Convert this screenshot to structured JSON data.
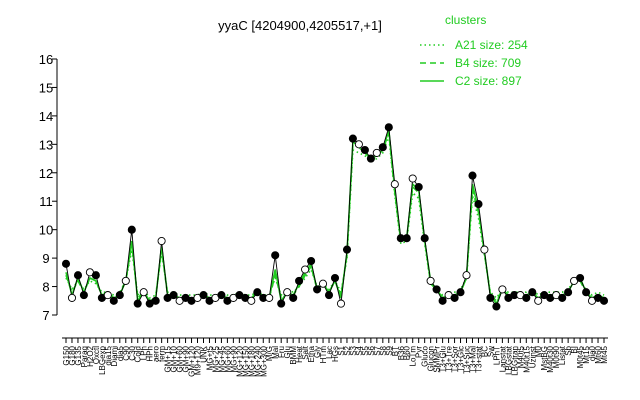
{
  "chart_data": {
    "type": "line",
    "title": "yyaC [4204900,4205517,+1]",
    "xlabel": "",
    "ylabel": "",
    "ylim": [
      7,
      16
    ],
    "yticks": [
      7,
      8,
      9,
      10,
      11,
      12,
      13,
      14,
      15,
      16
    ],
    "grid": false,
    "legend": {
      "title": "clusters",
      "placement": "top-right",
      "entries": [
        {
          "label": "A21 size: 254",
          "style": "dotted"
        },
        {
          "label": "B4 size: 709",
          "style": "dashed"
        },
        {
          "label": "C2 size: 897",
          "style": "solid"
        }
      ]
    },
    "colors": {
      "clusters": "#22cc22",
      "line": "#000000",
      "point_edge": "#000000"
    },
    "x_tick_labels": [
      "G150",
      "G180",
      "G135",
      "Paraq",
      "H2O2",
      "Oxctl",
      "LBGexp",
      "dia15",
      "Diami",
      "dia5",
      "C90",
      "C30",
      "Cold",
      "LPh",
      "HPh",
      "aero",
      "ferm",
      "GM+15",
      "GM+10",
      "GM+60",
      "GM+90",
      "GM+120",
      "M9+120",
      "UNK",
      "MG+t5",
      "MG+25",
      "MG+45",
      "MG+60",
      "MG+90",
      "MG+120",
      "MG+150",
      "MG+180",
      "MG+240",
      "MG+300",
      "M/G",
      "Mal",
      "Fru",
      "Glu",
      "BMM",
      "Heat",
      "Salt",
      "Etha",
      "Gly",
      "HTm",
      "Lac",
      "HGs",
      "S1",
      "S2",
      "S3",
      "S4",
      "S5",
      "S6",
      "S7",
      "S8",
      "S9",
      "BT",
      "B36",
      "B60",
      "LoTm",
      "Pyr",
      "Gluco",
      "Glucon",
      "SMMPr",
      "T3+Glu",
      "T3+Tre",
      "T3+Sor",
      "T3+Glc",
      "T3+Suc",
      "T3+Mal",
      "T3+stat",
      "BC",
      "Sw",
      "LPhT",
      "Lanstat",
      "LBGstat",
      "LBGtran",
      "M40t5",
      "M40t15",
      "Uzinst",
      "M0",
      "MstBG",
      "M40t30",
      "M0t90",
      "Listat",
      "Sb",
      "BI",
      "M0t45",
      "Mt15",
      "dia0",
      "Mt60",
      "Mt45"
    ],
    "x": [
      1,
      2,
      3,
      4,
      5,
      6,
      7,
      8,
      9,
      10,
      11,
      12,
      13,
      14,
      15,
      16,
      17,
      18,
      19,
      20,
      21,
      22,
      23,
      24,
      25,
      26,
      27,
      28,
      29,
      30,
      31,
      32,
      33,
      34,
      35,
      36,
      37,
      38,
      39,
      40,
      41,
      42,
      43,
      44,
      45,
      46,
      47,
      48,
      49,
      50,
      51,
      52,
      53,
      54,
      55,
      56,
      57,
      58,
      59,
      60,
      61,
      62,
      63,
      64,
      65,
      66,
      67,
      68,
      69,
      70,
      71,
      72,
      73,
      74,
      75,
      76,
      77,
      78,
      79,
      80,
      81,
      82,
      83,
      84,
      85,
      86,
      87,
      88,
      89,
      90,
      91
    ],
    "series": [
      {
        "kind": "data",
        "values": [
          8.8,
          7.6,
          8.4,
          7.7,
          8.5,
          8.4,
          7.6,
          7.7,
          7.5,
          7.7,
          8.2,
          10.0,
          7.4,
          7.8,
          7.4,
          7.5,
          9.6,
          7.6,
          7.7,
          7.5,
          7.6,
          7.5,
          7.6,
          7.7,
          7.5,
          7.6,
          7.7,
          7.5,
          7.6,
          7.7,
          7.6,
          7.5,
          7.8,
          7.6,
          7.6,
          9.1,
          7.4,
          7.8,
          7.6,
          8.2,
          8.6,
          8.9,
          7.9,
          8.1,
          7.7,
          8.3,
          7.4,
          9.3,
          13.2,
          13.0,
          12.8,
          12.5,
          12.7,
          12.9,
          13.6,
          11.6,
          9.7,
          9.7,
          11.8,
          11.5,
          9.7,
          8.2,
          7.9,
          7.5,
          7.7,
          7.6,
          7.8,
          8.4,
          11.9,
          10.9,
          9.3,
          7.6,
          7.3,
          7.9,
          7.6,
          7.7,
          7.7,
          7.6,
          7.8,
          7.5,
          7.7,
          7.6,
          7.7,
          7.6,
          7.8,
          8.2,
          8.3,
          7.8,
          7.5,
          7.6,
          7.5
        ]
      },
      {
        "name": "A21",
        "values": [
          8.3,
          7.9,
          8.2,
          7.9,
          8.2,
          8.1,
          7.8,
          7.8,
          7.7,
          7.8,
          8.2,
          9.3,
          7.7,
          7.9,
          7.6,
          7.7,
          9.2,
          7.8,
          7.8,
          7.7,
          7.7,
          7.7,
          7.7,
          7.8,
          7.7,
          7.7,
          7.8,
          7.7,
          7.7,
          7.8,
          7.7,
          7.7,
          7.8,
          7.7,
          7.7,
          8.3,
          7.7,
          7.9,
          7.8,
          8.0,
          8.3,
          8.6,
          8.0,
          8.1,
          7.9,
          8.2,
          7.8,
          9.0,
          12.8,
          12.7,
          12.6,
          12.4,
          12.5,
          12.7,
          13.3,
          11.2,
          9.5,
          9.6,
          11.3,
          11.1,
          9.5,
          8.1,
          7.9,
          7.7,
          7.8,
          7.8,
          7.9,
          8.3,
          11.2,
          10.4,
          9.1,
          7.8,
          7.6,
          7.9,
          7.8,
          7.8,
          7.8,
          7.8,
          7.9,
          7.7,
          7.8,
          7.8,
          7.8,
          7.8,
          7.9,
          8.2,
          8.2,
          7.9,
          7.7,
          7.8,
          7.7
        ]
      },
      {
        "name": "B4",
        "values": [
          8.4,
          7.8,
          8.2,
          7.8,
          8.3,
          8.2,
          7.7,
          7.8,
          7.6,
          7.8,
          8.2,
          9.5,
          7.6,
          7.8,
          7.5,
          7.6,
          9.3,
          7.7,
          7.7,
          7.6,
          7.6,
          7.6,
          7.6,
          7.7,
          7.6,
          7.6,
          7.7,
          7.6,
          7.6,
          7.7,
          7.6,
          7.6,
          7.8,
          7.6,
          7.6,
          8.4,
          7.6,
          7.8,
          7.7,
          8.0,
          8.4,
          8.7,
          7.9,
          8.1,
          7.8,
          8.2,
          7.7,
          9.1,
          13.0,
          12.9,
          12.7,
          12.5,
          12.6,
          12.8,
          13.4,
          11.3,
          9.6,
          9.7,
          11.5,
          11.3,
          9.6,
          8.1,
          7.9,
          7.6,
          7.7,
          7.7,
          7.8,
          8.3,
          11.4,
          10.6,
          9.2,
          7.7,
          7.5,
          7.9,
          7.7,
          7.7,
          7.7,
          7.7,
          7.8,
          7.6,
          7.7,
          7.7,
          7.7,
          7.7,
          7.8,
          8.2,
          8.2,
          7.8,
          7.6,
          7.7,
          7.6
        ]
      },
      {
        "name": "C2",
        "values": [
          8.5,
          7.7,
          8.3,
          7.8,
          8.3,
          8.2,
          7.7,
          7.7,
          7.6,
          7.7,
          8.2,
          9.6,
          7.5,
          7.8,
          7.5,
          7.6,
          9.4,
          7.7,
          7.7,
          7.6,
          7.6,
          7.6,
          7.6,
          7.7,
          7.6,
          7.6,
          7.7,
          7.6,
          7.6,
          7.7,
          7.6,
          7.6,
          7.8,
          7.6,
          7.6,
          8.6,
          7.5,
          7.8,
          7.7,
          8.1,
          8.5,
          8.8,
          7.9,
          8.1,
          7.8,
          8.2,
          7.6,
          9.2,
          13.1,
          12.9,
          12.7,
          12.5,
          12.6,
          12.8,
          13.5,
          11.4,
          9.6,
          9.7,
          11.6,
          11.4,
          9.6,
          8.2,
          7.9,
          7.6,
          7.7,
          7.7,
          7.8,
          8.3,
          11.6,
          10.7,
          9.2,
          7.7,
          7.4,
          7.9,
          7.7,
          7.7,
          7.7,
          7.7,
          7.8,
          7.6,
          7.7,
          7.7,
          7.7,
          7.7,
          7.8,
          8.2,
          8.3,
          7.8,
          7.6,
          7.7,
          7.6
        ]
      }
    ]
  }
}
